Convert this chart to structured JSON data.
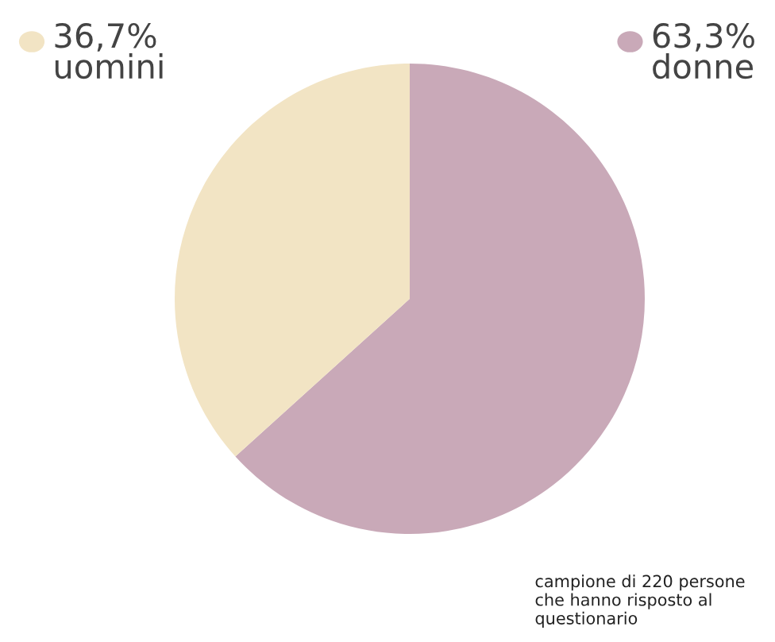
{
  "chart_data": {
    "type": "pie",
    "categories": [
      "donne",
      "uomini"
    ],
    "values": [
      63.3,
      36.7
    ],
    "value_labels": [
      "63,3%",
      "36,7%"
    ],
    "colors": [
      "#c9a9b8",
      "#f2e4c4"
    ],
    "legend": "top",
    "annotations": [
      "campione di 220 persone che hanno risposto al questionario"
    ]
  }
}
